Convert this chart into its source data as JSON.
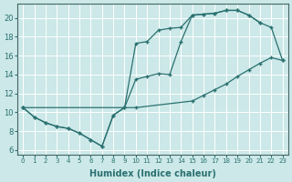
{
  "xlabel": "Humidex (Indice chaleur)",
  "bg_color": "#cce8e8",
  "grid_color": "#ffffff",
  "line_color": "#2a7070",
  "xlim": [
    -0.5,
    23.5
  ],
  "ylim": [
    5.5,
    21.5
  ],
  "xticks": [
    0,
    1,
    2,
    3,
    4,
    5,
    6,
    7,
    8,
    9,
    10,
    11,
    12,
    13,
    14,
    15,
    16,
    17,
    18,
    19,
    20,
    21,
    22,
    23
  ],
  "yticks": [
    6,
    8,
    10,
    12,
    14,
    16,
    18,
    20
  ],
  "line1_x": [
    0,
    1,
    2,
    3,
    4,
    5,
    6,
    7,
    8,
    9,
    10,
    11,
    12,
    13,
    14,
    15,
    16,
    17,
    18,
    19,
    20,
    21
  ],
  "line1_y": [
    10.5,
    9.5,
    8.9,
    8.5,
    8.3,
    7.8,
    7.1,
    6.4,
    9.7,
    10.5,
    13.5,
    13.8,
    14.1,
    14.0,
    17.5,
    20.3,
    20.4,
    20.5,
    20.8,
    20.8,
    20.3,
    19.5
  ],
  "line2_x": [
    0,
    1,
    2,
    3,
    4,
    5,
    6,
    7,
    8,
    9,
    10,
    11,
    12,
    13,
    14,
    15,
    16,
    17,
    18,
    19,
    20,
    21,
    22,
    23
  ],
  "line2_y": [
    10.5,
    9.5,
    8.9,
    8.5,
    8.3,
    7.8,
    7.1,
    6.4,
    9.7,
    10.5,
    17.3,
    17.5,
    18.7,
    18.9,
    19.0,
    20.3,
    20.4,
    20.5,
    20.8,
    20.8,
    20.3,
    19.5,
    19.0,
    15.5
  ],
  "line3_x": [
    0,
    10,
    15,
    16,
    17,
    18,
    19,
    20,
    21,
    22,
    23
  ],
  "line3_y": [
    10.5,
    10.5,
    11.2,
    11.8,
    12.4,
    13.0,
    13.8,
    14.5,
    15.2,
    15.8,
    15.5
  ]
}
